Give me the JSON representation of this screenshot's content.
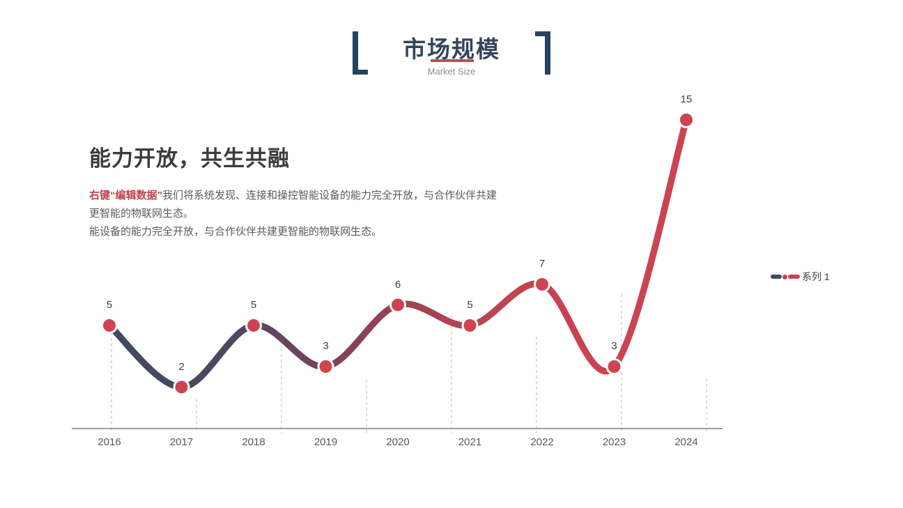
{
  "slide": {
    "header": {
      "title": "市场规模",
      "subtitle": "Market Size"
    },
    "intro": {
      "heading": "能力开放，共生共融",
      "highlight": "右键“编辑数据”",
      "line1": "我们将系统发现、连接和操控智能设备的能力完全开放，与合作伙伴共建",
      "line2": "更智能的物联网生态。",
      "line3": "能设备的能力完全开放，与合作伙伴共建更智能的物联网生态。"
    }
  },
  "colors": {
    "title_navy": "#34455c",
    "bracket_navy": "#26435c",
    "accent_red": "#bf4b55",
    "highlight_red": "#c0414e",
    "marker_red": "#d04351",
    "line_slate": "#404a63",
    "line_red": "#c84351",
    "body_gray": "#5a5a5a",
    "axis_gray": "#7f7f7f",
    "gridline_gray": "#c6c6c6"
  },
  "chart_data": {
    "type": "line",
    "title": "",
    "categories": [
      "2016",
      "2017",
      "2018",
      "2019",
      "2020",
      "2021",
      "2022",
      "2023",
      "2024"
    ],
    "series": [
      {
        "name": "系列 1",
        "values": [
          5,
          2,
          5,
          3,
          6,
          5,
          7,
          3,
          15
        ]
      }
    ],
    "xlabel": "",
    "ylabel": "",
    "ylim": [
      0,
      16
    ],
    "smooth_line": true,
    "data_labels": true,
    "legend_position": "right",
    "gridlines": "vertical-dashed-drop-lines",
    "line_gradient": [
      "#404a63",
      "#c84351"
    ]
  }
}
